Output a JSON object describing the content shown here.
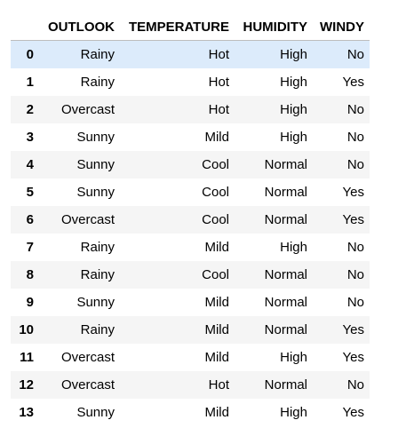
{
  "table": {
    "columns": [
      "OUTLOOK",
      "TEMPERATURE",
      "HUMIDITY",
      "WINDY"
    ],
    "rows": [
      {
        "index": "0",
        "values": [
          "Rainy",
          "Hot",
          "High",
          "No"
        ]
      },
      {
        "index": "1",
        "values": [
          "Rainy",
          "Hot",
          "High",
          "Yes"
        ]
      },
      {
        "index": "2",
        "values": [
          "Overcast",
          "Hot",
          "High",
          "No"
        ]
      },
      {
        "index": "3",
        "values": [
          "Sunny",
          "Mild",
          "High",
          "No"
        ]
      },
      {
        "index": "4",
        "values": [
          "Sunny",
          "Cool",
          "Normal",
          "No"
        ]
      },
      {
        "index": "5",
        "values": [
          "Sunny",
          "Cool",
          "Normal",
          "Yes"
        ]
      },
      {
        "index": "6",
        "values": [
          "Overcast",
          "Cool",
          "Normal",
          "Yes"
        ]
      },
      {
        "index": "7",
        "values": [
          "Rainy",
          "Mild",
          "High",
          "No"
        ]
      },
      {
        "index": "8",
        "values": [
          "Rainy",
          "Cool",
          "Normal",
          "No"
        ]
      },
      {
        "index": "9",
        "values": [
          "Sunny",
          "Mild",
          "Normal",
          "No"
        ]
      },
      {
        "index": "10",
        "values": [
          "Rainy",
          "Mild",
          "Normal",
          "Yes"
        ]
      },
      {
        "index": "11",
        "values": [
          "Overcast",
          "Mild",
          "High",
          "Yes"
        ]
      },
      {
        "index": "12",
        "values": [
          "Overcast",
          "Hot",
          "Normal",
          "No"
        ]
      },
      {
        "index": "13",
        "values": [
          "Sunny",
          "Mild",
          "High",
          "Yes"
        ]
      }
    ],
    "selected_row": 0
  },
  "colors": {
    "stripe": "#f5f5f5",
    "selected": "#dcebfb",
    "header_border": "#bdbdbd"
  }
}
